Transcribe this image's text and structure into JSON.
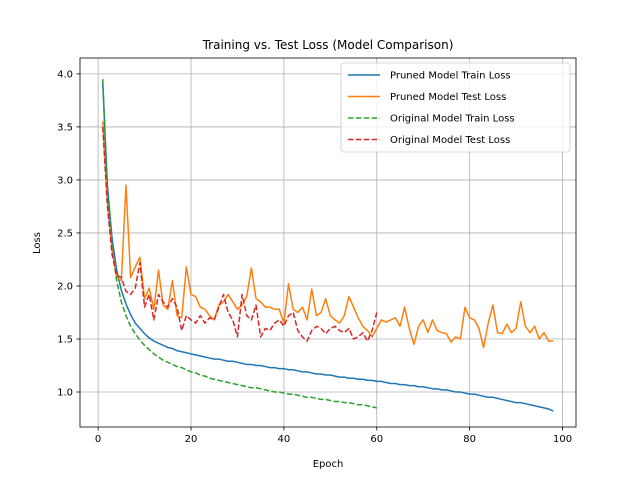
{
  "chart_data": {
    "type": "line",
    "title": "Training vs. Test Loss (Model Comparison)",
    "xlabel": "Epoch",
    "ylabel": "Loss",
    "xlim": [
      -3.9,
      102.9
    ],
    "ylim": [
      0.67,
      4.15
    ],
    "xticks": [
      0,
      20,
      40,
      60,
      80,
      100
    ],
    "yticks": [
      1.0,
      1.5,
      2.0,
      2.5,
      3.0,
      3.5,
      4.0
    ],
    "grid": true,
    "legend_position": "top-right",
    "series": [
      {
        "name": "Pruned Model Train Loss",
        "color": "#1f77b4",
        "dash": "solid",
        "x_start": 1,
        "values": [
          3.92,
          2.95,
          2.45,
          2.15,
          1.96,
          1.83,
          1.73,
          1.65,
          1.6,
          1.55,
          1.51,
          1.48,
          1.46,
          1.44,
          1.42,
          1.41,
          1.39,
          1.38,
          1.37,
          1.36,
          1.35,
          1.34,
          1.33,
          1.32,
          1.31,
          1.31,
          1.3,
          1.29,
          1.29,
          1.28,
          1.27,
          1.26,
          1.26,
          1.25,
          1.25,
          1.24,
          1.23,
          1.23,
          1.22,
          1.22,
          1.21,
          1.21,
          1.2,
          1.19,
          1.19,
          1.18,
          1.17,
          1.17,
          1.16,
          1.16,
          1.15,
          1.14,
          1.14,
          1.13,
          1.13,
          1.12,
          1.12,
          1.11,
          1.11,
          1.1,
          1.1,
          1.09,
          1.08,
          1.08,
          1.07,
          1.07,
          1.06,
          1.06,
          1.05,
          1.05,
          1.04,
          1.03,
          1.03,
          1.02,
          1.02,
          1.01,
          1.0,
          1.0,
          0.99,
          0.98,
          0.98,
          0.97,
          0.96,
          0.95,
          0.95,
          0.94,
          0.93,
          0.92,
          0.91,
          0.9,
          0.9,
          0.89,
          0.88,
          0.87,
          0.86,
          0.85,
          0.84,
          0.82
        ]
      },
      {
        "name": "Pruned Model Test Loss",
        "color": "#ff7f0e",
        "dash": "solid",
        "x_start": 1,
        "values": [
          3.55,
          2.8,
          2.35,
          2.08,
          2.05,
          2.95,
          2.08,
          2.18,
          2.27,
          1.88,
          1.98,
          1.78,
          2.15,
          1.82,
          1.78,
          2.05,
          1.72,
          1.7,
          2.18,
          1.92,
          1.9,
          1.8,
          1.78,
          1.72,
          1.68,
          1.82,
          1.85,
          1.92,
          1.85,
          1.78,
          1.82,
          1.9,
          2.17,
          1.88,
          1.85,
          1.8,
          1.8,
          1.78,
          1.78,
          1.65,
          2.02,
          1.78,
          1.75,
          1.8,
          1.68,
          1.97,
          1.72,
          1.75,
          1.88,
          1.72,
          1.68,
          1.65,
          1.72,
          1.9,
          1.8,
          1.7,
          1.62,
          1.58,
          1.52,
          1.6,
          1.68,
          1.66,
          1.68,
          1.7,
          1.62,
          1.8,
          1.6,
          1.45,
          1.62,
          1.68,
          1.56,
          1.68,
          1.58,
          1.56,
          1.55,
          1.47,
          1.52,
          1.5,
          1.8,
          1.7,
          1.68,
          1.6,
          1.42,
          1.65,
          1.82,
          1.56,
          1.55,
          1.64,
          1.56,
          1.6,
          1.85,
          1.62,
          1.56,
          1.62,
          1.5,
          1.56,
          1.48,
          1.48
        ]
      },
      {
        "name": "Original Model Train Loss",
        "color": "#2ca02c",
        "dash": "dashed",
        "x_start": 1,
        "values": [
          3.95,
          2.85,
          2.35,
          2.05,
          1.85,
          1.72,
          1.62,
          1.55,
          1.49,
          1.44,
          1.4,
          1.36,
          1.33,
          1.3,
          1.28,
          1.26,
          1.24,
          1.23,
          1.21,
          1.19,
          1.18,
          1.16,
          1.15,
          1.13,
          1.12,
          1.11,
          1.1,
          1.09,
          1.08,
          1.07,
          1.06,
          1.05,
          1.04,
          1.04,
          1.03,
          1.02,
          1.01,
          1.0,
          1.0,
          0.99,
          0.98,
          0.98,
          0.97,
          0.96,
          0.95,
          0.95,
          0.94,
          0.93,
          0.93,
          0.92,
          0.91,
          0.91,
          0.9,
          0.9,
          0.89,
          0.88,
          0.88,
          0.87,
          0.86,
          0.85
        ]
      },
      {
        "name": "Original Model Test Loss",
        "color": "#d62728",
        "dash": "dashed",
        "x_start": 1,
        "values": [
          3.5,
          2.75,
          2.3,
          2.1,
          2.08,
          1.95,
          1.92,
          1.98,
          2.22,
          1.8,
          1.92,
          1.68,
          1.92,
          1.85,
          1.8,
          1.88,
          1.8,
          1.58,
          1.72,
          1.68,
          1.65,
          1.72,
          1.65,
          1.7,
          1.68,
          1.8,
          1.92,
          1.75,
          1.68,
          1.52,
          1.92,
          1.72,
          1.68,
          1.82,
          1.52,
          1.6,
          1.58,
          1.65,
          1.68,
          1.62,
          1.72,
          1.75,
          1.58,
          1.52,
          1.48,
          1.58,
          1.62,
          1.6,
          1.55,
          1.6,
          1.62,
          1.58,
          1.56,
          1.6,
          1.5,
          1.52,
          1.56,
          1.48,
          1.58,
          1.75
        ]
      }
    ]
  }
}
